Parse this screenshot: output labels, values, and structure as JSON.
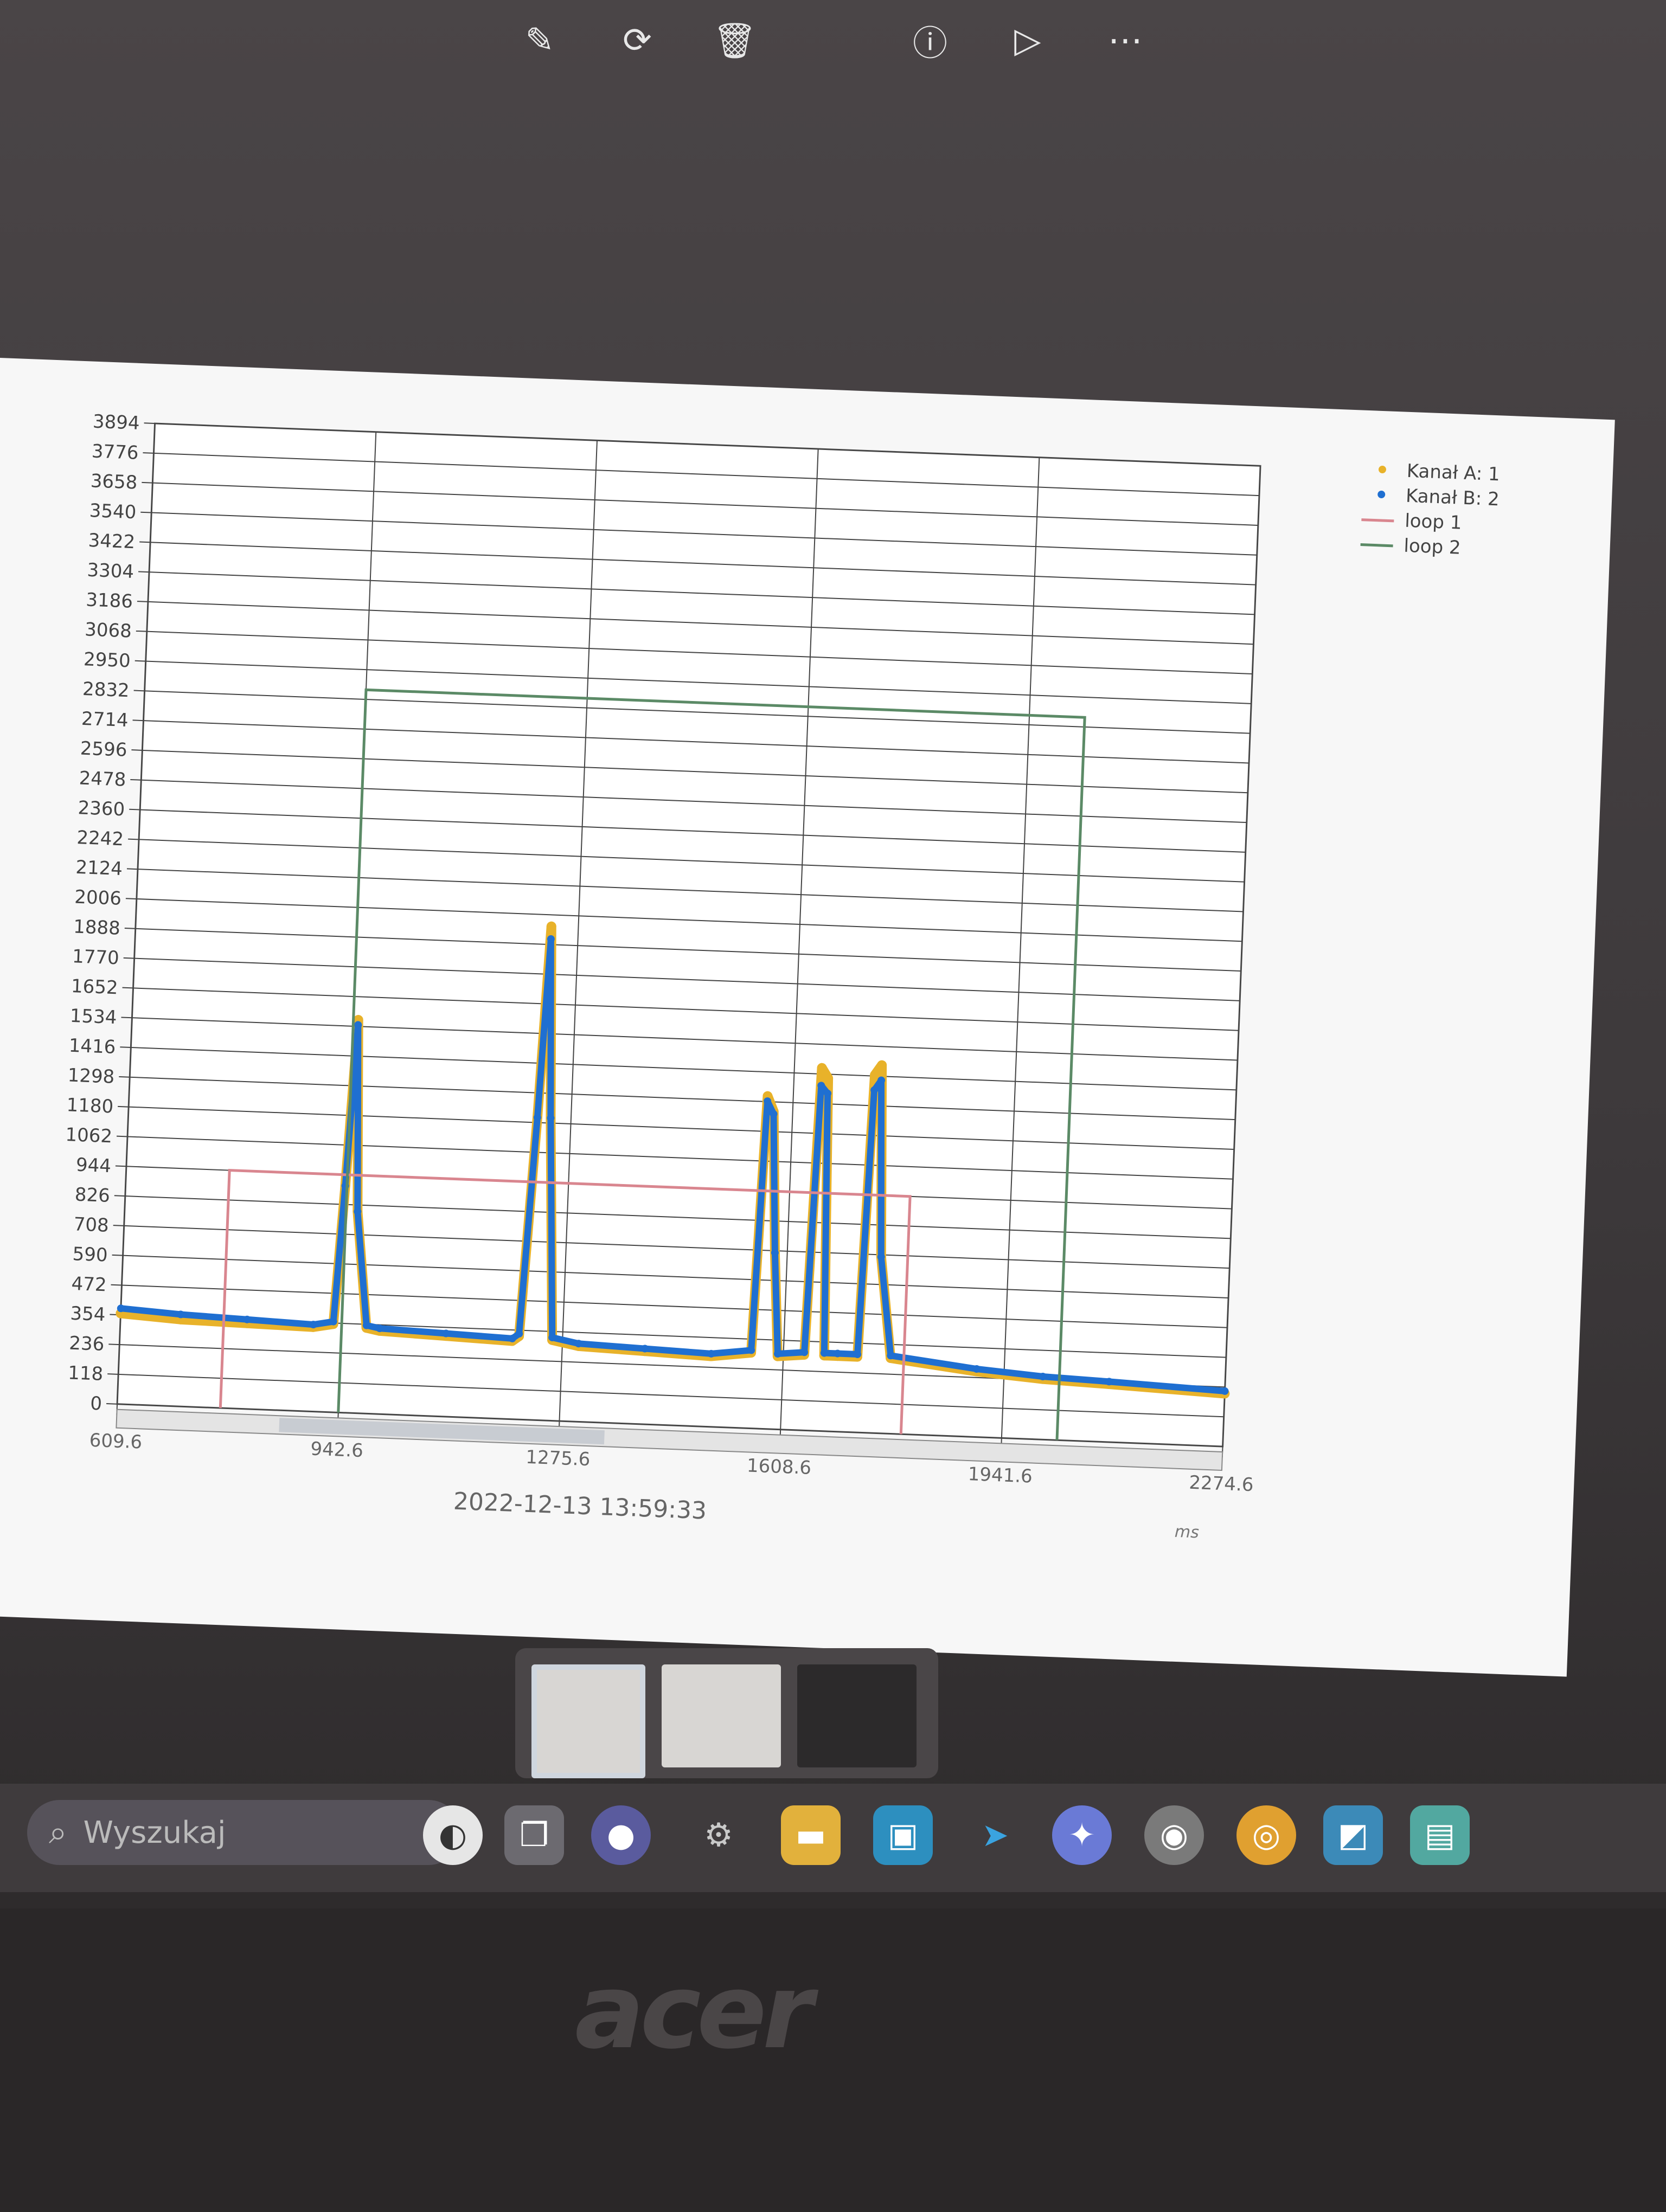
{
  "toolbar": {
    "icons": [
      "edit-icon",
      "rotate-icon",
      "delete-icon",
      "info-icon",
      "slideshow-icon",
      "more-icon"
    ]
  },
  "chart_data": {
    "type": "line",
    "title": "",
    "xlabel": "ms",
    "ylabel": "",
    "timestamp": "2022-12-13 13:59:33",
    "xlim": [
      609.6,
      2274.6
    ],
    "ylim": [
      0,
      3894
    ],
    "x_ticks": [
      "609.6",
      "942.6",
      "1275.6",
      "1608.6",
      "1941.6",
      "2274.6"
    ],
    "y_ticks": [
      "0",
      "118",
      "236",
      "354",
      "472",
      "590",
      "708",
      "826",
      "944",
      "1062",
      "1180",
      "1298",
      "1416",
      "1534",
      "1652",
      "1770",
      "1888",
      "2006",
      "2124",
      "2242",
      "2360",
      "2478",
      "2596",
      "2714",
      "2832",
      "2950",
      "3068",
      "3186",
      "3304",
      "3422",
      "3540",
      "3658",
      "3776",
      "3894"
    ],
    "legend_position": "top-right",
    "legend": [
      "Kanał A: 1",
      "Kanał B: 2",
      "loop 1",
      "loop 2"
    ],
    "series": [
      {
        "name": "Kanał A: 1",
        "kind": "points",
        "color": "#e8b22a",
        "x": [
          609.6,
          700,
          800,
          900,
          930,
          940,
          950,
          960,
          980,
          1000,
          1100,
          1200,
          1210,
          1225,
          1235,
          1245,
          1260,
          1300,
          1400,
          1500,
          1560,
          1570,
          1580,
          1590,
          1600,
          1640,
          1650,
          1660,
          1670,
          1690,
          1720,
          1730,
          1740,
          1750,
          1770,
          1900,
          2000,
          2100,
          2274.6
        ],
        "y": [
          360,
          345,
          340,
          335,
          350,
          900,
          1560,
          800,
          340,
          330,
          320,
          310,
          330,
          1200,
          1960,
          1200,
          320,
          300,
          290,
          280,
          300,
          1320,
          1260,
          700,
          290,
          300,
          1440,
          1400,
          300,
          300,
          300,
          1420,
          1460,
          700,
          300,
          260,
          240,
          230,
          210
        ]
      },
      {
        "name": "Kanał B: 2",
        "kind": "points",
        "color": "#1f6fd1",
        "x": [
          609.6,
          700,
          800,
          900,
          930,
          940,
          950,
          960,
          980,
          1000,
          1100,
          1200,
          1210,
          1225,
          1235,
          1245,
          1260,
          1300,
          1400,
          1500,
          1560,
          1570,
          1580,
          1590,
          1600,
          1640,
          1650,
          1660,
          1670,
          1690,
          1720,
          1730,
          1740,
          1750,
          1770,
          1900,
          2000,
          2100,
          2274.6
        ],
        "y": [
          380,
          365,
          355,
          345,
          360,
          900,
          1540,
          800,
          350,
          340,
          330,
          320,
          340,
          1200,
          1910,
          1200,
          330,
          310,
          300,
          290,
          310,
          1300,
          1250,
          700,
          300,
          310,
          1370,
          1340,
          310,
          310,
          310,
          1360,
          1400,
          700,
          310,
          270,
          250,
          240,
          220
        ]
      },
      {
        "name": "loop 1",
        "kind": "line",
        "color": "#d9868f",
        "x": [
          765,
          765,
          1790,
          1790
        ],
        "y": [
          0,
          944,
          944,
          0
        ]
      },
      {
        "name": "loop 2",
        "kind": "line",
        "color": "#5b8a66",
        "x": [
          942.6,
          942.6,
          2025,
          2025
        ],
        "y": [
          0,
          2870,
          2870,
          0
        ]
      }
    ]
  }
}
